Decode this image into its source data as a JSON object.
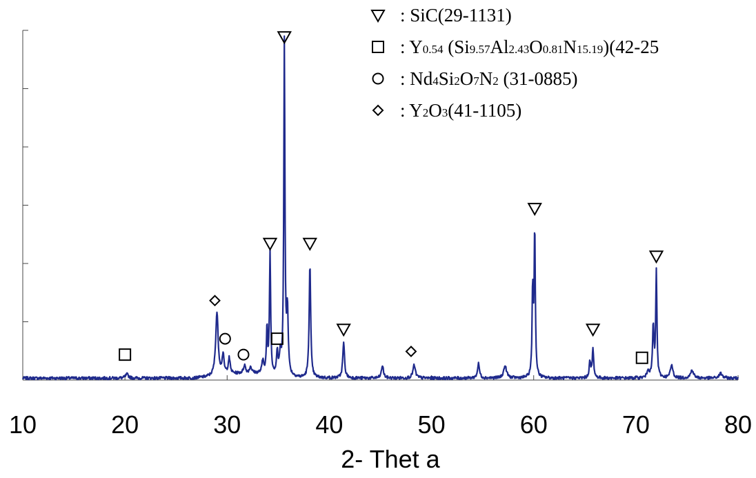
{
  "chart_data": {
    "type": "line",
    "title": "",
    "xlabel": "2- Thet a",
    "ylabel": "",
    "xlim": [
      10,
      80
    ],
    "ylim": [
      0,
      110
    ],
    "x_ticks": [
      10,
      20,
      30,
      40,
      50,
      60,
      70,
      80
    ],
    "grid": false,
    "legend_position": "top-right",
    "series_color": "#1f2a8c",
    "legend": [
      {
        "marker": "triangle-down",
        "prefix": ": SiC",
        "code": "(29-1131)"
      },
      {
        "marker": "square",
        "prefix": ": Y",
        "sub1": "0.54",
        "mid1": " (Si",
        "sub2": "9.57",
        "mid2": "Al",
        "sub3": "2.43",
        "mid3": "O",
        "sub4": "0.81",
        "mid4": "N",
        "sub5": "15.19",
        "code": ")(42-25"
      },
      {
        "marker": "circle",
        "prefix": ": Nd",
        "sub1": "4",
        "mid1": "Si",
        "sub2": "2",
        "mid2": "O",
        "sub3": "7",
        "mid3": "N",
        "sub4": "2",
        "code": " (31-0885)"
      },
      {
        "marker": "diamond",
        "prefix": ": Y",
        "sub1": "2",
        "mid1": "O",
        "sub2": "3",
        "code": "(41-1105)"
      }
    ],
    "peaks": [
      {
        "x": 20.2,
        "y": 1.2,
        "w": 0.3
      },
      {
        "x": 29.0,
        "y": 20,
        "w": 0.25
      },
      {
        "x": 29.6,
        "y": 6,
        "w": 0.2
      },
      {
        "x": 30.2,
        "y": 5,
        "w": 0.2
      },
      {
        "x": 31.7,
        "y": 2.5,
        "w": 0.2
      },
      {
        "x": 32.3,
        "y": 2,
        "w": 0.2
      },
      {
        "x": 33.5,
        "y": 4,
        "w": 0.2
      },
      {
        "x": 33.9,
        "y": 14,
        "w": 0.12
      },
      {
        "x": 34.2,
        "y": 38,
        "w": 0.12
      },
      {
        "x": 34.9,
        "y": 7,
        "w": 0.15
      },
      {
        "x": 35.2,
        "y": 6,
        "w": 0.15
      },
      {
        "x": 35.6,
        "y": 105,
        "w": 0.12
      },
      {
        "x": 35.9,
        "y": 20,
        "w": 0.15
      },
      {
        "x": 38.1,
        "y": 36,
        "w": 0.15
      },
      {
        "x": 41.4,
        "y": 11,
        "w": 0.18
      },
      {
        "x": 45.2,
        "y": 4,
        "w": 0.2
      },
      {
        "x": 48.3,
        "y": 4,
        "w": 0.25
      },
      {
        "x": 54.6,
        "y": 4.5,
        "w": 0.2
      },
      {
        "x": 57.2,
        "y": 3.8,
        "w": 0.3
      },
      {
        "x": 59.9,
        "y": 27,
        "w": 0.12
      },
      {
        "x": 60.1,
        "y": 46,
        "w": 0.12
      },
      {
        "x": 65.5,
        "y": 5,
        "w": 0.15
      },
      {
        "x": 65.8,
        "y": 9,
        "w": 0.15
      },
      {
        "x": 71.2,
        "y": 2.5,
        "w": 0.2
      },
      {
        "x": 71.7,
        "y": 16,
        "w": 0.15
      },
      {
        "x": 72.0,
        "y": 33,
        "w": 0.12
      },
      {
        "x": 73.5,
        "y": 4,
        "w": 0.25
      },
      {
        "x": 75.5,
        "y": 2.5,
        "w": 0.3
      },
      {
        "x": 78.3,
        "y": 1.5,
        "w": 0.3
      }
    ],
    "annotations": [
      {
        "marker": "triangle-down",
        "x": 35.6,
        "y": 108
      },
      {
        "marker": "triangle-down",
        "x": 34.2,
        "y": 43
      },
      {
        "marker": "triangle-down",
        "x": 38.1,
        "y": 43
      },
      {
        "marker": "triangle-down",
        "x": 41.4,
        "y": 16
      },
      {
        "marker": "triangle-down",
        "x": 60.1,
        "y": 54
      },
      {
        "marker": "triangle-down",
        "x": 65.8,
        "y": 16
      },
      {
        "marker": "triangle-down",
        "x": 72.0,
        "y": 39
      },
      {
        "marker": "square",
        "x": 20.0,
        "y": 8
      },
      {
        "marker": "square",
        "x": 34.9,
        "y": 13
      },
      {
        "marker": "square",
        "x": 70.6,
        "y": 7
      },
      {
        "marker": "circle",
        "x": 29.8,
        "y": 13
      },
      {
        "marker": "circle",
        "x": 31.6,
        "y": 8
      },
      {
        "marker": "diamond",
        "x": 28.8,
        "y": 25
      },
      {
        "marker": "diamond",
        "x": 48.0,
        "y": 9
      }
    ]
  }
}
